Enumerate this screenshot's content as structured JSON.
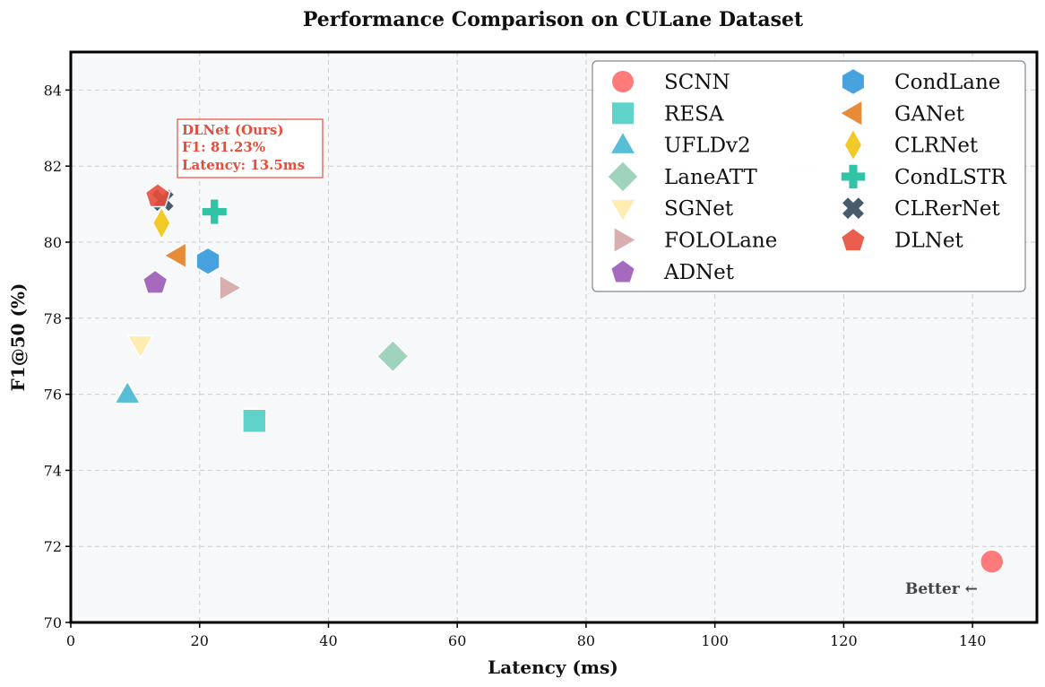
{
  "chart_data": {
    "type": "scatter",
    "title": "Performance Comparison on CULane Dataset",
    "xlabel": "Latency (ms)",
    "ylabel": "F1@50 (%)",
    "xlim": [
      0,
      150
    ],
    "ylim": [
      70,
      85
    ],
    "xticks": [
      0,
      20,
      40,
      60,
      80,
      100,
      120,
      140
    ],
    "yticks": [
      70,
      72,
      74,
      76,
      78,
      80,
      82,
      84
    ],
    "grid": true,
    "legend_position": "top-right",
    "legend_columns": 2,
    "series": [
      {
        "name": "SCNN",
        "x": 143.0,
        "y": 71.6,
        "marker": "circle",
        "color": "#ff6b6b"
      },
      {
        "name": "RESA",
        "x": 28.5,
        "y": 75.3,
        "marker": "square",
        "color": "#4ecdc4"
      },
      {
        "name": "UFLDv2",
        "x": 8.8,
        "y": 76.0,
        "marker": "triangle-up",
        "color": "#45b7d1"
      },
      {
        "name": "LaneATT",
        "x": 50.0,
        "y": 77.0,
        "marker": "diamond",
        "color": "#96ceb4"
      },
      {
        "name": "SGNet",
        "x": 10.8,
        "y": 77.3,
        "marker": "triangle-down",
        "color": "#ffeaa7"
      },
      {
        "name": "FOLOLane",
        "x": 24.5,
        "y": 78.8,
        "marker": "triangle-right",
        "color": "#d4a5a5"
      },
      {
        "name": "ADNet",
        "x": 13.1,
        "y": 78.95,
        "marker": "pentagon",
        "color": "#9b59b6"
      },
      {
        "name": "CondLane",
        "x": 21.3,
        "y": 79.5,
        "marker": "hexagon",
        "color": "#3498db"
      },
      {
        "name": "GANet",
        "x": 16.5,
        "y": 79.65,
        "marker": "triangle-left",
        "color": "#e67e22"
      },
      {
        "name": "CLRNet",
        "x": 14.1,
        "y": 80.5,
        "marker": "thin-diamond",
        "color": "#f1c40f"
      },
      {
        "name": "CondLSTR",
        "x": 22.3,
        "y": 80.8,
        "marker": "plus",
        "color": "#1abc9c"
      },
      {
        "name": "CLRerNet",
        "x": 14.3,
        "y": 81.1,
        "marker": "x",
        "color": "#34495e"
      },
      {
        "name": "DLNet",
        "x": 13.5,
        "y": 81.23,
        "marker": "pentagon",
        "color": "#e74c3c"
      }
    ],
    "annotations": {
      "highlight": {
        "lines": [
          "DLNet (Ours)",
          "F1: 81.23%",
          "Latency: 13.5ms"
        ],
        "color": "#e74c3c"
      },
      "better": "Better ←"
    }
  }
}
